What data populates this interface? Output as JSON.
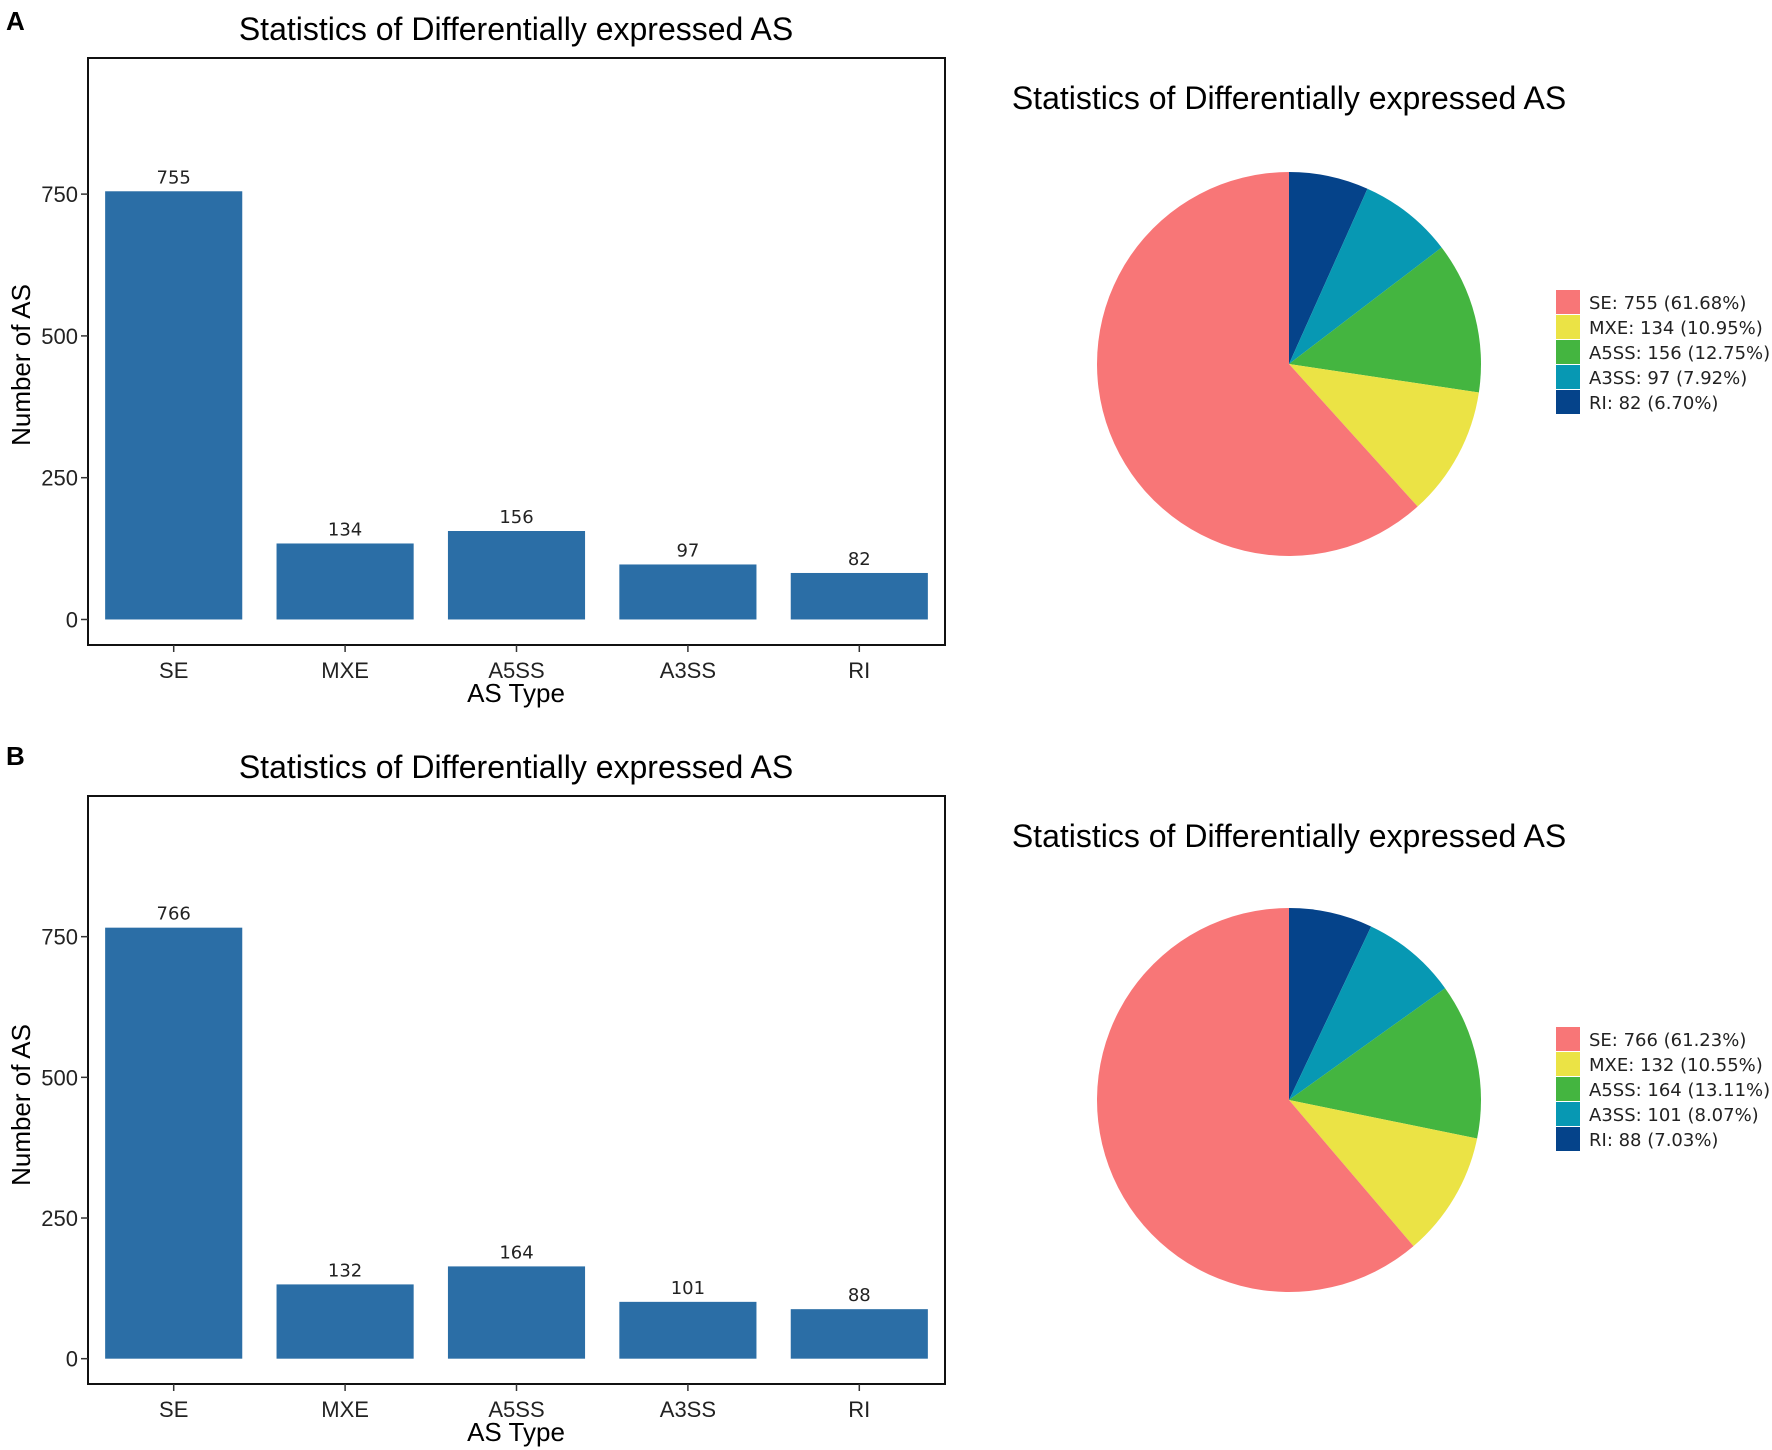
{
  "figure": {
    "panels": [
      "A",
      "B"
    ]
  },
  "colors": {
    "bar": "#2b6ea6",
    "SE": "#f87677",
    "MXE": "#ebe345",
    "A5SS": "#44b540",
    "A3SS": "#0798b3",
    "RI": "#05438a"
  },
  "chart_data": [
    {
      "panel": "A",
      "type": "bar",
      "title": "Statistics of Differentially expressed AS",
      "xlabel": "AS Type",
      "ylabel": "Number of AS",
      "categories": [
        "SE",
        "MXE",
        "A5SS",
        "A3SS",
        "RI"
      ],
      "values": [
        755,
        134,
        156,
        97,
        82
      ],
      "yticks": [
        0,
        250,
        500,
        750
      ],
      "ylim": [
        -45,
        990
      ],
      "grid": false
    },
    {
      "panel": "A",
      "type": "pie",
      "title": "Statistics of Differentially expressed AS",
      "categories": [
        "SE",
        "MXE",
        "A5SS",
        "A3SS",
        "RI"
      ],
      "values": [
        755,
        134,
        156,
        97,
        82
      ],
      "legend": [
        "SE: 755 (61.68%)",
        "MXE: 134 (10.95%)",
        "A5SS: 156 (12.75%)",
        "A3SS: 97 (7.92%)",
        "RI: 82 (6.70%)"
      ],
      "legend_position": "right"
    },
    {
      "panel": "B",
      "type": "bar",
      "title": "Statistics of Differentially expressed AS",
      "xlabel": "AS Type",
      "ylabel": "Number of AS",
      "categories": [
        "SE",
        "MXE",
        "A5SS",
        "A3SS",
        "RI"
      ],
      "values": [
        766,
        132,
        164,
        101,
        88
      ],
      "yticks": [
        0,
        250,
        500,
        750
      ],
      "ylim": [
        -45,
        1000
      ],
      "grid": false
    },
    {
      "panel": "B",
      "type": "pie",
      "title": "Statistics of Differentially expressed AS",
      "categories": [
        "SE",
        "MXE",
        "A5SS",
        "A3SS",
        "RI"
      ],
      "values": [
        766,
        132,
        164,
        101,
        88
      ],
      "legend": [
        "SE: 766 (61.23%)",
        "MXE: 132 (10.55%)",
        "A5SS: 164 (13.11%)",
        "A3SS: 101 (8.07%)",
        "RI: 88 (7.03%)"
      ],
      "legend_position": "right"
    }
  ]
}
